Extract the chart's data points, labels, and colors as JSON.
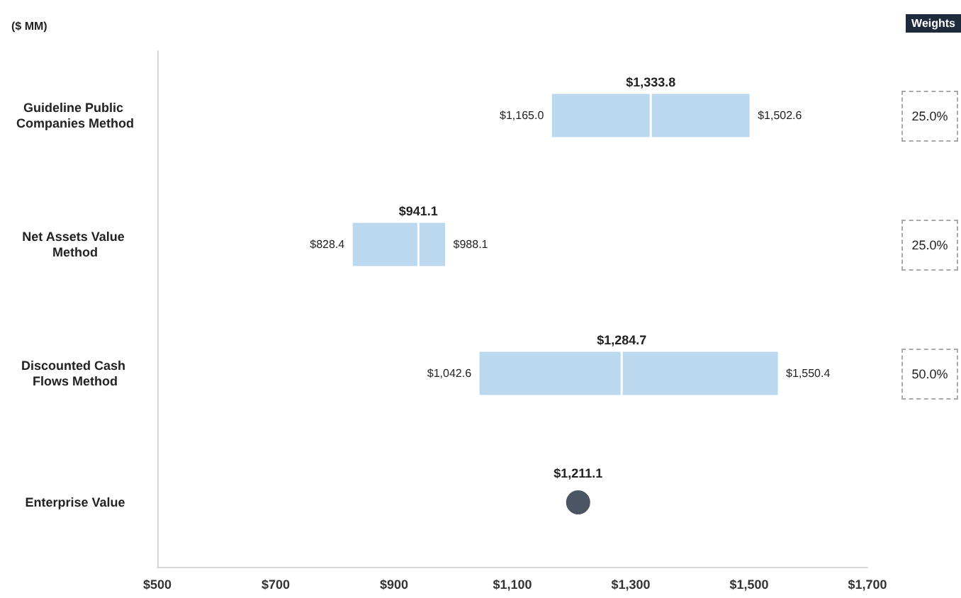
{
  "chart_data": {
    "type": "box",
    "orientation": "horizontal",
    "categories": [
      "Guideline Public Companies Method",
      "Net Assets Value Method",
      "Discounted Cash Flows Method",
      "Enterprise Value"
    ],
    "series": [
      {
        "color": "#bcd8ef",
        "boxes": [
          {
            "low": 1165.0,
            "q1": 1165.0,
            "median": 1333.8,
            "q3": 1502.6,
            "high": 1502.6
          },
          {
            "low": 828.4,
            "q1": 828.4,
            "median": 941.1,
            "q3": 988.1,
            "high": 988.1
          },
          {
            "low": 1042.6,
            "q1": 1042.6,
            "median": 1284.7,
            "q3": 1550.4,
            "high": 1550.4
          },
          null
        ]
      },
      {
        "type": "scatter",
        "color": "#1f2a3c",
        "marker": "circle",
        "values": [
          null,
          null,
          null,
          1211.1
        ]
      }
    ],
    "xlim": [
      500,
      1700
    ],
    "xticks": [
      {
        "value": 500,
        "label": "$500"
      },
      {
        "value": 700,
        "label": "$700"
      },
      {
        "value": 900,
        "label": "$900"
      },
      {
        "value": 1100,
        "label": "$1,100"
      },
      {
        "value": 1300,
        "label": "$1,300"
      },
      {
        "value": 1500,
        "label": "$1,500"
      },
      {
        "value": 1700,
        "label": "$1,700"
      }
    ],
    "annotations": [
      "($ MM)",
      "Weights",
      {
        "text": "$1,165.0",
        "x": 1165.0,
        "y": "Guideline Public Companies Method"
      },
      {
        "text": "$1,333.8",
        "x": 1333.8,
        "y": "Guideline Public Companies Method"
      },
      {
        "text": "$1,502.6",
        "x": 1502.6,
        "y": "Guideline Public Companies Method"
      },
      {
        "text": "$828.4",
        "x": 828.4,
        "y": "Net Assets Value Method"
      },
      {
        "text": "$941.1",
        "x": 941.1,
        "y": "Net Assets Value Method"
      },
      {
        "text": "$988.1",
        "x": 988.1,
        "y": "Net Assets Value Method"
      },
      {
        "text": "$1,042.6",
        "x": 1042.6,
        "y": "Discounted Cash Flows Method"
      },
      {
        "text": "$1,284.7",
        "x": 1284.7,
        "y": "Discounted Cash Flows Method"
      },
      {
        "text": "$1,550.4",
        "x": 1550.4,
        "y": "Discounted Cash Flows Method"
      },
      {
        "text": "$1,211.1",
        "x": 1211.1,
        "y": "Enterprise Value"
      },
      "25.0%",
      "25.0%",
      "50.0%"
    ]
  }
}
